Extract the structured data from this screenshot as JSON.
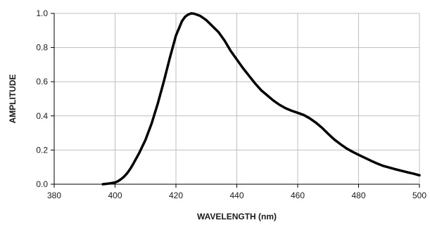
{
  "chart_data": {
    "type": "line",
    "title": "",
    "xlabel": "WAVELENGTH (nm)",
    "ylabel": "AMPLITUDE",
    "xlim": [
      380,
      500
    ],
    "ylim": [
      0,
      1.0
    ],
    "xticks": [
      380,
      400,
      420,
      440,
      460,
      480,
      500
    ],
    "yticks": [
      0.0,
      0.2,
      0.4,
      0.6,
      0.8,
      1.0
    ],
    "xtick_labels": [
      "380",
      "400",
      "420",
      "440",
      "460",
      "480",
      "500"
    ],
    "ytick_labels": [
      "0.0",
      "0.2",
      "0.4",
      "0.6",
      "0.8",
      "1.0"
    ],
    "grid": true,
    "legend": false,
    "colors": {
      "line": "#000000",
      "grid": "#bfbfbf",
      "axis": "#000000"
    },
    "series": [
      {
        "x": [
          396,
          398,
          400,
          401,
          402,
          403,
          404,
          405,
          406,
          408,
          410,
          412,
          414,
          416,
          418,
          420,
          422,
          423,
          424,
          425,
          426,
          428,
          430,
          432,
          434,
          436,
          438,
          440,
          442,
          444,
          446,
          448,
          450,
          452,
          454,
          456,
          458,
          460,
          462,
          464,
          466,
          468,
          470,
          472,
          474,
          476,
          478,
          480,
          482,
          484,
          486,
          488,
          490,
          492,
          494,
          496,
          498,
          500
        ],
        "y": [
          0.0,
          0.004,
          0.01,
          0.018,
          0.03,
          0.045,
          0.065,
          0.09,
          0.12,
          0.185,
          0.26,
          0.355,
          0.47,
          0.6,
          0.74,
          0.87,
          0.955,
          0.98,
          0.993,
          1.0,
          0.998,
          0.985,
          0.96,
          0.925,
          0.89,
          0.84,
          0.78,
          0.73,
          0.68,
          0.635,
          0.59,
          0.55,
          0.52,
          0.49,
          0.465,
          0.445,
          0.43,
          0.418,
          0.405,
          0.385,
          0.36,
          0.33,
          0.295,
          0.262,
          0.235,
          0.21,
          0.19,
          0.172,
          0.155,
          0.138,
          0.122,
          0.108,
          0.098,
          0.088,
          0.079,
          0.07,
          0.062,
          0.052
        ]
      }
    ]
  }
}
